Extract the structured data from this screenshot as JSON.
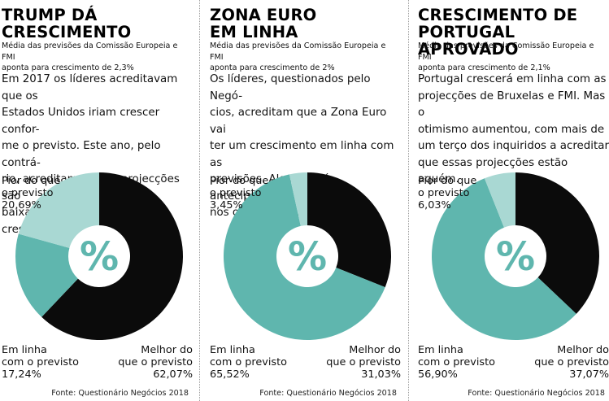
{
  "colors": {
    "worse": "#a9d8d3",
    "inline": "#5fb6ae",
    "better": "#0b0b0b",
    "symbol": "#5fb6ae"
  },
  "center_symbol": "%",
  "chart_data": [
    {
      "type": "pie",
      "title": "TRUMP DÁ\nCRESCIMENTO",
      "subtitle": "Média das previsões da Comissão Europeia e FMI\naponta para crescimento de 2,3%",
      "text": "Em 2017 os líderes acreditavam que os\nEstados Unidos iriam crescer confor-\nme o previsto. Este ano, pelo contrá-\nrio, acreditam que as projecções são\nbaixas. Esperam mais crescimento.",
      "categories": [
        "Pior do que\no previsto",
        "Em linha\ncom o previsto",
        "Melhor do\nque o previsto"
      ],
      "values": [
        20.69,
        17.24,
        62.07
      ],
      "value_labels": [
        "20,69%",
        "17,24%",
        "62,07%"
      ],
      "source": "Fonte: Questionário Negócios 2018"
    },
    {
      "type": "pie",
      "title": "ZONA EURO\nEM LINHA",
      "subtitle": "Média das previsões da Comissão Europeia e FMI\naponta para crescimento de 2%",
      "text": "Os líderes, questionados pelo Negó-\ncios, acreditam que a Zona Euro vai\nter um crescimento em linha com as\nprevisões. Algo que já antecipavam\nnos outros anos.",
      "categories": [
        "Pior do que\no previsto",
        "Em linha\ncom o previsto",
        "Melhor do\nque o previsto"
      ],
      "values": [
        3.45,
        65.52,
        31.03
      ],
      "value_labels": [
        "3,45%",
        "65,52%",
        "31,03%"
      ],
      "source": "Fonte: Questionário Negócios 2018"
    },
    {
      "type": "pie",
      "title": "CRESCIMENTO DE\nPORTUGAL APROVADO",
      "subtitle": "Média das previsões da Comissão Europeia e FMI\naponta para crescimento de 2,1%",
      "text": "Portugal crescerá em linha com as\nprojecções de Bruxelas e FMI. Mas o\notimismo aumentou, com mais de\num terço dos inquiridos a acreditar\nque essas projecções estão aquém.",
      "categories": [
        "Pior do que\no previsto",
        "Em linha\ncom o previsto",
        "Melhor do\nque o previsto"
      ],
      "values": [
        6.03,
        56.9,
        37.07
      ],
      "value_labels": [
        "6,03%",
        "56,90%",
        "37,07%"
      ],
      "source": "Fonte: Questionário Negócios 2018"
    }
  ]
}
